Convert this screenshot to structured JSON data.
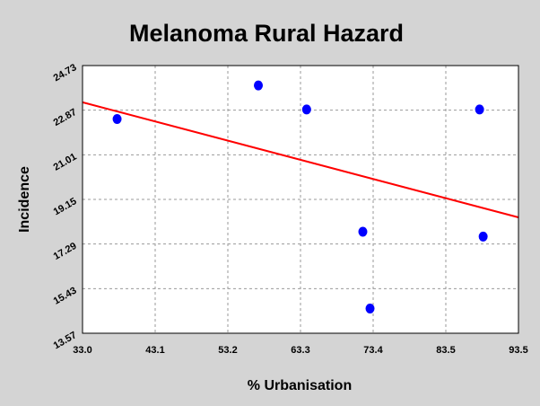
{
  "chart_data": {
    "type": "scatter",
    "title": "Melanoma Rural Hazard",
    "xlabel": "% Urbanisation",
    "ylabel": "Incidence",
    "xlim": [
      33.0,
      93.5
    ],
    "ylim": [
      13.57,
      24.73
    ],
    "x_ticks": [
      "33.0",
      "43.1",
      "53.2",
      "63.3",
      "73.4",
      "83.5",
      "93.5"
    ],
    "y_ticks": [
      "13.57",
      "15.43",
      "17.29",
      "19.15",
      "21.01",
      "22.87",
      "24.73"
    ],
    "grid": true,
    "series": [
      {
        "points": [
          {
            "x": 37.8,
            "y": 22.5
          },
          {
            "x": 57.4,
            "y": 23.9
          },
          {
            "x": 64.1,
            "y": 22.9
          },
          {
            "x": 71.9,
            "y": 17.8
          },
          {
            "x": 72.9,
            "y": 14.6
          },
          {
            "x": 88.1,
            "y": 22.9
          },
          {
            "x": 88.6,
            "y": 17.6
          }
        ]
      }
    ],
    "trendline": {
      "x": [
        33.0,
        93.5
      ],
      "y": [
        23.2,
        18.4
      ]
    },
    "colors": {
      "points": "#0000ff",
      "trendline": "#ff0000",
      "plot_background": "#ffffff",
      "page_background": "#d4d4d4",
      "grid": "#9a9a9a"
    }
  }
}
